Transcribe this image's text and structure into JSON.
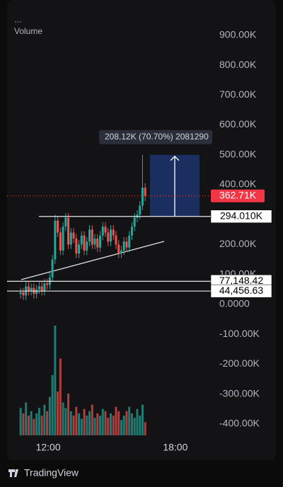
{
  "chart_data": {
    "type": "candlestick",
    "menu": "...",
    "volume_label": "Volume",
    "brand": "TradingView",
    "measure_label": "208.12K (70.70%) 2081290",
    "up_color": "#26a69a",
    "down_color": "#ef5350",
    "x": [
      10.7,
      10.825,
      10.95,
      11.075,
      11.2,
      11.325,
      11.45,
      11.575,
      11.7,
      11.825,
      11.95,
      12.075,
      12.2,
      12.325,
      12.45,
      12.575,
      12.7,
      12.825,
      12.95,
      13.075,
      13.2,
      13.325,
      13.45,
      13.575,
      13.7,
      13.825,
      13.95,
      14.075,
      14.2,
      14.325,
      14.45,
      14.575,
      14.7,
      14.825,
      14.95,
      15.075,
      15.2,
      15.325,
      15.45,
      15.575,
      15.7,
      15.825,
      15.95,
      16.075,
      16.2,
      16.325,
      16.45,
      16.575
    ],
    "open": [
      35000,
      40000,
      30000,
      60000,
      45000,
      55000,
      35000,
      50000,
      60000,
      45000,
      70000,
      65000,
      90000,
      150000,
      280000,
      240000,
      180000,
      260000,
      290000,
      200000,
      240000,
      220000,
      170000,
      200000,
      230000,
      180000,
      210000,
      250000,
      200000,
      220000,
      190000,
      230000,
      260000,
      240000,
      210000,
      250000,
      230000,
      200000,
      170000,
      180000,
      210000,
      190000,
      230000,
      260000,
      290000,
      300000,
      330000,
      390000
    ],
    "high": [
      55000,
      55000,
      75000,
      75000,
      70000,
      70000,
      65000,
      75000,
      75000,
      85000,
      85000,
      105000,
      165000,
      300000,
      295000,
      255000,
      275000,
      305000,
      305000,
      255000,
      255000,
      235000,
      215000,
      245000,
      245000,
      225000,
      265000,
      265000,
      235000,
      235000,
      245000,
      275000,
      275000,
      255000,
      265000,
      265000,
      245000,
      215000,
      195000,
      225000,
      225000,
      245000,
      275000,
      305000,
      315000,
      345000,
      500000,
      405000
    ],
    "low": [
      20000,
      15000,
      15000,
      30000,
      30000,
      20000,
      20000,
      35000,
      30000,
      30000,
      50000,
      50000,
      75000,
      135000,
      225000,
      165000,
      165000,
      245000,
      185000,
      185000,
      205000,
      155000,
      155000,
      185000,
      165000,
      165000,
      195000,
      185000,
      185000,
      175000,
      175000,
      215000,
      225000,
      195000,
      195000,
      215000,
      185000,
      155000,
      155000,
      165000,
      175000,
      175000,
      215000,
      245000,
      275000,
      285000,
      315000,
      345000
    ],
    "close": [
      40000,
      30000,
      60000,
      45000,
      55000,
      35000,
      50000,
      60000,
      45000,
      70000,
      65000,
      90000,
      150000,
      280000,
      240000,
      180000,
      260000,
      290000,
      200000,
      240000,
      220000,
      170000,
      200000,
      230000,
      180000,
      210000,
      250000,
      200000,
      220000,
      190000,
      230000,
      260000,
      240000,
      210000,
      250000,
      230000,
      200000,
      170000,
      180000,
      210000,
      190000,
      230000,
      260000,
      290000,
      300000,
      330000,
      390000,
      362710
    ],
    "volume": [
      25,
      20,
      30,
      18,
      22,
      15,
      20,
      25,
      18,
      28,
      22,
      35,
      55,
      100,
      40,
      70,
      30,
      25,
      38,
      22,
      18,
      26,
      20,
      15,
      24,
      18,
      22,
      28,
      16,
      20,
      18,
      24,
      22,
      16,
      20,
      18,
      26,
      22,
      14,
      18,
      22,
      26,
      20,
      16,
      24,
      18,
      28,
      12
    ],
    "vlim": [
      0,
      100
    ],
    "xlim": [
      10.06,
      19.74
    ],
    "xticks": [
      {
        "value": 12,
        "label": "12:00"
      },
      {
        "value": 18,
        "label": "18:00"
      }
    ],
    "ylim": [
      -450000,
      1018000
    ],
    "yticks": [
      {
        "value": 900000,
        "label": "900.00K"
      },
      {
        "value": 800000,
        "label": "800.00K"
      },
      {
        "value": 700000,
        "label": "700.00K"
      },
      {
        "value": 600000,
        "label": "600.00K"
      },
      {
        "value": 500000,
        "label": "500.00K"
      },
      {
        "value": 400000,
        "label": "400.00K"
      },
      {
        "value": 300000,
        "label": "300.00K"
      },
      {
        "value": 200000,
        "label": "200.00K"
      },
      {
        "value": 100000,
        "label": "100.00K"
      },
      {
        "value": 0,
        "label": "0.0000"
      },
      {
        "value": -100000,
        "label": "-100.00K"
      },
      {
        "value": -200000,
        "label": "-200.00K"
      },
      {
        "value": -300000,
        "label": "-300.00K"
      },
      {
        "value": -400000,
        "label": "-400.00K"
      }
    ],
    "last_price": {
      "value": 362710,
      "label": "362.71K"
    },
    "levels": [
      {
        "value": 294010,
        "label": "294.010K"
      },
      {
        "value": 77148.42,
        "label": "77,148.42"
      },
      {
        "value": 44456.63,
        "label": "44,456.63"
      }
    ]
  }
}
